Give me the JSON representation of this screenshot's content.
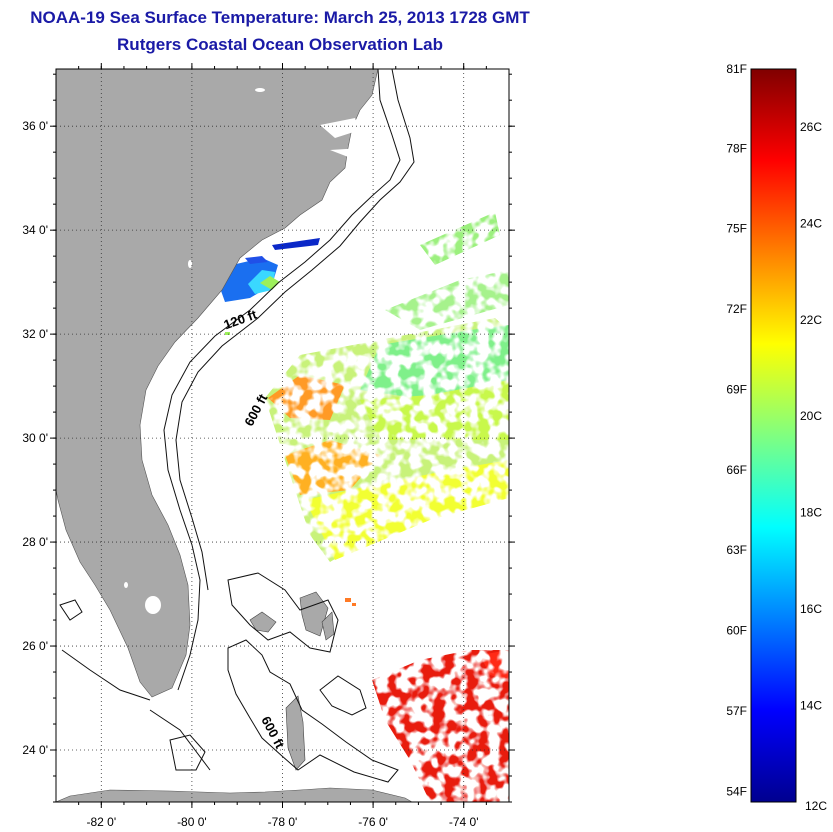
{
  "title": "NOAA-19 Sea Surface Temperature:  March 25, 2013 1728 GMT",
  "subtitle": "Rutgers Coastal Ocean Observation Lab",
  "map": {
    "lat_range": [
      23.0,
      37.1
    ],
    "lon_range": [
      -83.0,
      -73.0
    ],
    "lat_ticks": [
      {
        "value": 24,
        "label": "24 0'"
      },
      {
        "value": 26,
        "label": "26 0'"
      },
      {
        "value": 28,
        "label": "28 0'"
      },
      {
        "value": 30,
        "label": "30 0'"
      },
      {
        "value": 32,
        "label": "32 0'"
      },
      {
        "value": 34,
        "label": "34 0'"
      },
      {
        "value": 36,
        "label": "36 0'"
      }
    ],
    "lon_ticks": [
      {
        "value": -82,
        "label": "-82 0'"
      },
      {
        "value": -80,
        "label": "-80 0'"
      },
      {
        "value": -78,
        "label": "-78 0'"
      },
      {
        "value": -76,
        "label": "-76 0'"
      },
      {
        "value": -74,
        "label": "-74 0'"
      }
    ],
    "grid": true,
    "land_color": "#a9a9a9",
    "contour_labels": [
      {
        "text": "120 ft",
        "lon": -78.9,
        "lat": 32.2,
        "angle": -20
      },
      {
        "text": "600 ft",
        "lon": -78.5,
        "lat": 30.5,
        "angle": -62
      },
      {
        "text": "600 ft",
        "lon": -78.3,
        "lat": 24.3,
        "angle": 62
      }
    ]
  },
  "colorbar": {
    "range_c": [
      12,
      27.2
    ],
    "fahrenheit_labels": [
      "81F",
      "78F",
      "75F",
      "72F",
      "69F",
      "66F",
      "63F",
      "60F",
      "57F",
      "54F"
    ],
    "celsius_labels": [
      "26C",
      "24C",
      "22C",
      "20C",
      "18C",
      "16C",
      "14C",
      "12C"
    ],
    "stops": [
      "#00008f",
      "#0000ff",
      "#0080ff",
      "#00ffff",
      "#80ff80",
      "#ffff00",
      "#ff8000",
      "#ff0000",
      "#800000"
    ]
  }
}
